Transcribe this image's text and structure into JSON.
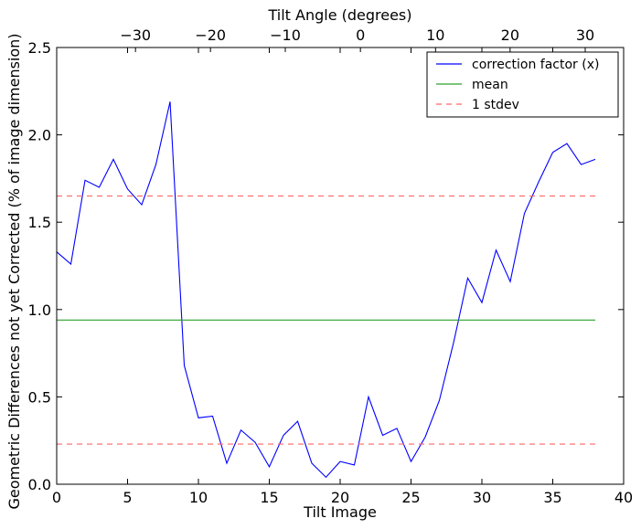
{
  "chart_data": {
    "type": "line",
    "xlabel": "Tilt Image",
    "ylabel": "Geometric Differences not yet Corrected (% of image dimension)",
    "top_xlabel": "Tilt Angle (degrees)",
    "xlim": [
      0,
      40
    ],
    "ylim": [
      0,
      2.5
    ],
    "x_ticks": [
      0,
      5,
      10,
      15,
      20,
      25,
      30,
      35,
      40
    ],
    "x_tick_labels": [
      "0",
      "5",
      "10",
      "15",
      "20",
      "25",
      "30",
      "35",
      "40"
    ],
    "y_ticks": [
      0.0,
      0.5,
      1.0,
      1.5,
      2.0,
      2.5
    ],
    "y_tick_labels": [
      "0.0",
      "0.5",
      "1.0",
      "1.5",
      "2.0",
      "2.5"
    ],
    "top_ticks_at_x": [
      5.56,
      10.85,
      16.13,
      21.43,
      26.73,
      31.99,
      37.29
    ],
    "top_tick_labels": [
      "−30",
      "−20",
      "−10",
      "0",
      "10",
      "20",
      "30"
    ],
    "grid": false,
    "legend_position": "top-right",
    "series": [
      {
        "name": "correction factor (x)",
        "color": "#0000ff",
        "style": "solid",
        "x": [
          0,
          1,
          2,
          3,
          4,
          5,
          6,
          7,
          8,
          9,
          10,
          11,
          12,
          13,
          14,
          15,
          16,
          17,
          18,
          19,
          20,
          21,
          22,
          23,
          24,
          25,
          26,
          27,
          28,
          29,
          30,
          31,
          32,
          33,
          34,
          35,
          36,
          37,
          38
        ],
        "y": [
          1.33,
          1.26,
          1.74,
          1.7,
          1.86,
          1.69,
          1.6,
          1.83,
          2.19,
          0.68,
          0.38,
          0.39,
          0.12,
          0.31,
          0.24,
          0.1,
          0.28,
          0.36,
          0.12,
          0.04,
          0.13,
          0.11,
          0.5,
          0.28,
          0.32,
          0.13,
          0.27,
          0.48,
          0.81,
          1.18,
          1.04,
          1.34,
          1.16,
          1.55,
          1.73,
          1.9,
          1.95,
          1.83,
          1.86
        ]
      },
      {
        "name": "mean",
        "color": "#2ca02c",
        "style": "solid",
        "x": [
          0,
          38
        ],
        "y": [
          0.94,
          0.94
        ]
      },
      {
        "name": "1 stdev",
        "color": "#ff6666",
        "style": "dashed",
        "x": [
          0,
          38
        ],
        "y": [
          1.65,
          1.65
        ]
      },
      {
        "name": "",
        "color": "#ff6666",
        "style": "dashed",
        "x": [
          0,
          38
        ],
        "y": [
          0.23,
          0.23
        ]
      }
    ]
  }
}
